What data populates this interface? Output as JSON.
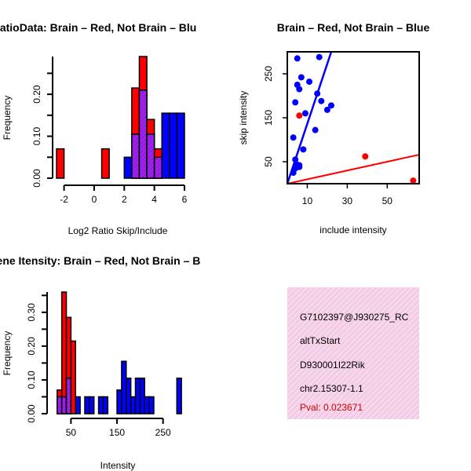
{
  "colors": {
    "red": "#ff0000",
    "blue": "#0000ff",
    "purple": "#a020f0",
    "pval": "#cc0000",
    "info_bg": "#f6d6ea"
  },
  "chart_data": [
    {
      "id": "ratio",
      "type": "bar",
      "title": "RatioData: Brain – Red, Not Brain – Blu",
      "xlabel": "Log2 Ratio Skip/Include",
      "ylabel": "Frequency",
      "xlim": [
        -2.5,
        6
      ],
      "ylim": [
        0,
        0.29
      ],
      "xticks": [
        "-2",
        "0",
        "2",
        "4",
        "6"
      ],
      "yticks": [
        "0.00",
        "0.10",
        "0.20"
      ],
      "yticks_minor": [
        0.05,
        0.15,
        0.25
      ],
      "bin_width": 0.5,
      "series": [
        {
          "name": "Brain",
          "color": "red",
          "bins": [
            [
              -2.5,
              0.07
            ],
            [
              0.5,
              0.07
            ],
            [
              2.5,
              0.215
            ],
            [
              3.0,
              0.29
            ],
            [
              3.5,
              0.14
            ],
            [
              4.0,
              0.07
            ]
          ]
        },
        {
          "name": "Not Brain",
          "color": "blue",
          "bins": [
            [
              2.0,
              0.05
            ],
            [
              2.5,
              0.105
            ],
            [
              3.0,
              0.21
            ],
            [
              3.5,
              0.105
            ],
            [
              4.0,
              0.05
            ],
            [
              4.5,
              0.155
            ],
            [
              5.0,
              0.155
            ],
            [
              5.5,
              0.155
            ]
          ]
        }
      ]
    },
    {
      "id": "scatter",
      "type": "scatter",
      "title": "Brain – Red, Not Brain – Blue",
      "xlabel": "include intensity",
      "ylabel": "skip intensity",
      "xlim": [
        0,
        66
      ],
      "ylim": [
        0,
        300
      ],
      "xticks": [
        "10",
        "30",
        "50"
      ],
      "yticks": [
        "50",
        "150",
        "250"
      ],
      "brain_points": [
        [
          6,
          155
        ],
        [
          39,
          62
        ],
        [
          63,
          7
        ]
      ],
      "notbrain_points": [
        [
          5,
          285
        ],
        [
          16,
          288
        ],
        [
          7,
          242
        ],
        [
          11,
          232
        ],
        [
          15,
          205
        ],
        [
          17,
          188
        ],
        [
          4,
          185
        ],
        [
          6,
          215
        ],
        [
          5,
          225
        ],
        [
          22,
          178
        ],
        [
          20,
          168
        ],
        [
          9,
          160
        ],
        [
          14,
          122
        ],
        [
          3,
          105
        ],
        [
          8,
          78
        ],
        [
          4,
          55
        ],
        [
          5,
          43
        ],
        [
          6,
          38
        ],
        [
          4,
          35
        ],
        [
          3,
          25
        ],
        [
          6,
          42
        ]
      ],
      "brain_line": [
        [
          0,
          0
        ],
        [
          66,
          66
        ]
      ],
      "notbrain_line": [
        [
          0,
          0
        ],
        [
          22,
          300
        ]
      ]
    },
    {
      "id": "intensity",
      "type": "bar",
      "title": "Gene Itensity: Brain – Red, Not Brain – B",
      "xlabel": "Intensity",
      "ylabel": "Frequency",
      "xlim": [
        5,
        300
      ],
      "ylim": [
        0,
        0.36
      ],
      "xticks": [
        "50",
        "150",
        "250"
      ],
      "yticks": [
        "0.00",
        "0.10",
        "0.20",
        "0.30"
      ],
      "yticks_minor": [
        0.05,
        0.15,
        0.25,
        0.35
      ],
      "bin_width": 10,
      "series": [
        {
          "name": "Brain",
          "color": "red",
          "bins": [
            [
              20,
              0.07
            ],
            [
              30,
              0.36
            ],
            [
              40,
              0.285
            ],
            [
              50,
              0.215
            ]
          ]
        },
        {
          "name": "Not Brain",
          "color": "blue",
          "bins": [
            [
              20,
              0.05
            ],
            [
              30,
              0.05
            ],
            [
              40,
              0.105
            ],
            [
              60,
              0.05
            ],
            [
              80,
              0.05
            ],
            [
              90,
              0.05
            ],
            [
              110,
              0.05
            ],
            [
              120,
              0.05
            ],
            [
              150,
              0.07
            ],
            [
              160,
              0.155
            ],
            [
              170,
              0.105
            ],
            [
              180,
              0.05
            ],
            [
              190,
              0.105
            ],
            [
              200,
              0.105
            ],
            [
              210,
              0.05
            ],
            [
              220,
              0.05
            ],
            [
              280,
              0.105
            ]
          ]
        }
      ]
    }
  ],
  "info": {
    "probe": "G7102397@J930275_RC",
    "event": "altTxStart",
    "gene": "D930001I22Rik",
    "location": "chr2.15307-1.1",
    "pval": "Pval: 0.023671"
  }
}
